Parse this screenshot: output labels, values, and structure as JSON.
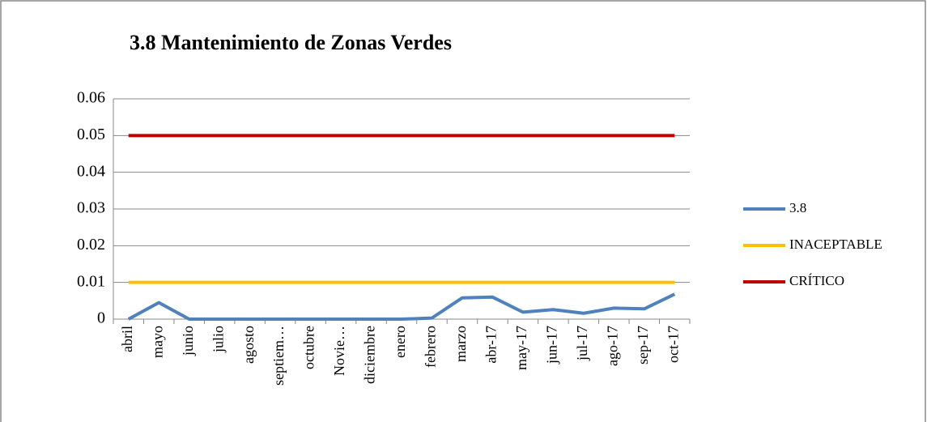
{
  "chart_data": {
    "type": "line",
    "title": "3.8 Mantenimiento de Zonas Verdes",
    "categories": [
      "abril",
      "mayo",
      "junio",
      "julio",
      "agosto",
      "septiem…",
      "octubre",
      "Novie…",
      "diciembre",
      "enero",
      "febrero",
      "marzo",
      "abr-17",
      "may-17",
      "jun-17",
      "jul-17",
      "ago-17",
      "sep-17",
      "oct-17"
    ],
    "series": [
      {
        "name": "3.8",
        "color": "#4f81bd",
        "values": [
          0,
          0.0045,
          0,
          0,
          0,
          0,
          0,
          0,
          0,
          0,
          0.0003,
          0.0058,
          0.006,
          0.0019,
          0.0026,
          0.0016,
          0.003,
          0.0028,
          0.0068
        ]
      },
      {
        "name": "INACEPTABLE",
        "color": "#ffc000",
        "values": [
          0.01,
          0.01,
          0.01,
          0.01,
          0.01,
          0.01,
          0.01,
          0.01,
          0.01,
          0.01,
          0.01,
          0.01,
          0.01,
          0.01,
          0.01,
          0.01,
          0.01,
          0.01,
          0.01
        ]
      },
      {
        "name": "CRÍTICO",
        "color": "#c00000",
        "values": [
          0.05,
          0.05,
          0.05,
          0.05,
          0.05,
          0.05,
          0.05,
          0.05,
          0.05,
          0.05,
          0.05,
          0.05,
          0.05,
          0.05,
          0.05,
          0.05,
          0.05,
          0.05,
          0.05
        ]
      }
    ],
    "ylim": [
      0,
      0.06
    ],
    "yticks": [
      0,
      0.01,
      0.02,
      0.03,
      0.04,
      0.05,
      0.06
    ],
    "grid": true,
    "legend": "right"
  }
}
